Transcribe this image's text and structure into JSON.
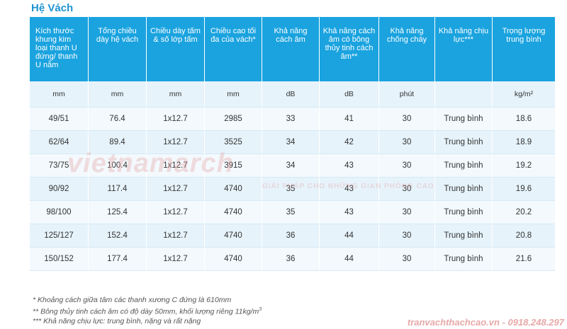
{
  "title": "Hệ Vách",
  "headers": [
    "Kích thước khung kim loại thanh U đứng/ thanh U nằm",
    "Tổng chiều dày hệ vách",
    "Chiều dày tấm & số lớp tấm",
    "Chiều cao tối đa của vách*",
    "Khả năng cách âm",
    "Khả năng cách âm có bông thủy tinh cách âm**",
    "Khả năng chống cháy",
    "Khả năng chịu lực***",
    "Trọng lượng trung bình"
  ],
  "units": [
    "mm",
    "mm",
    "mm",
    "mm",
    "dB",
    "dB",
    "phút",
    "",
    "kg/m²"
  ],
  "rows": [
    [
      "49/51",
      "76.4",
      "1x12.7",
      "2985",
      "33",
      "41",
      "30",
      "Trung bình",
      "18.6"
    ],
    [
      "62/64",
      "89.4",
      "1x12.7",
      "3525",
      "34",
      "42",
      "30",
      "Trung bình",
      "18.9"
    ],
    [
      "73/75",
      "100.4",
      "1x12.7",
      "3915",
      "34",
      "43",
      "30",
      "Trung bình",
      "19.2"
    ],
    [
      "90/92",
      "117.4",
      "1x12.7",
      "4740",
      "35",
      "43",
      "30",
      "Trung bình",
      "19.6"
    ],
    [
      "98/100",
      "125.4",
      "1x12.7",
      "4740",
      "35",
      "43",
      "30",
      "Trung bình",
      "20.2"
    ],
    [
      "125/127",
      "152.4",
      "1x12.7",
      "4740",
      "36",
      "44",
      "30",
      "Trung bình",
      "20.8"
    ],
    [
      "150/152",
      "177.4",
      "1x12.7",
      "4740",
      "36",
      "44",
      "30",
      "Trung bình",
      "21.6"
    ]
  ],
  "notes": [
    "* Khoảng cách giữa tâm các thanh xương C đứng là 610mm",
    "** Bông thủy tinh cách âm có độ dày 50mm, khối lượng riêng 11kg/m",
    "*** Khả năng chịu lực: trung bình, nặng và rất nặng"
  ],
  "note2_sup": "3",
  "watermark": {
    "logo": "vietnamarch",
    "slogan": "GIẢI PHÁP CHO NHỮNG GIAN PHÒNG CAO"
  },
  "website": "tranvachthachcao.vn - 0918.248.297",
  "colors": {
    "header_bg": "#1aa3df",
    "title": "#1f93d2",
    "row_odd": "#e6f3fb",
    "row_even": "#f3f9fd"
  }
}
